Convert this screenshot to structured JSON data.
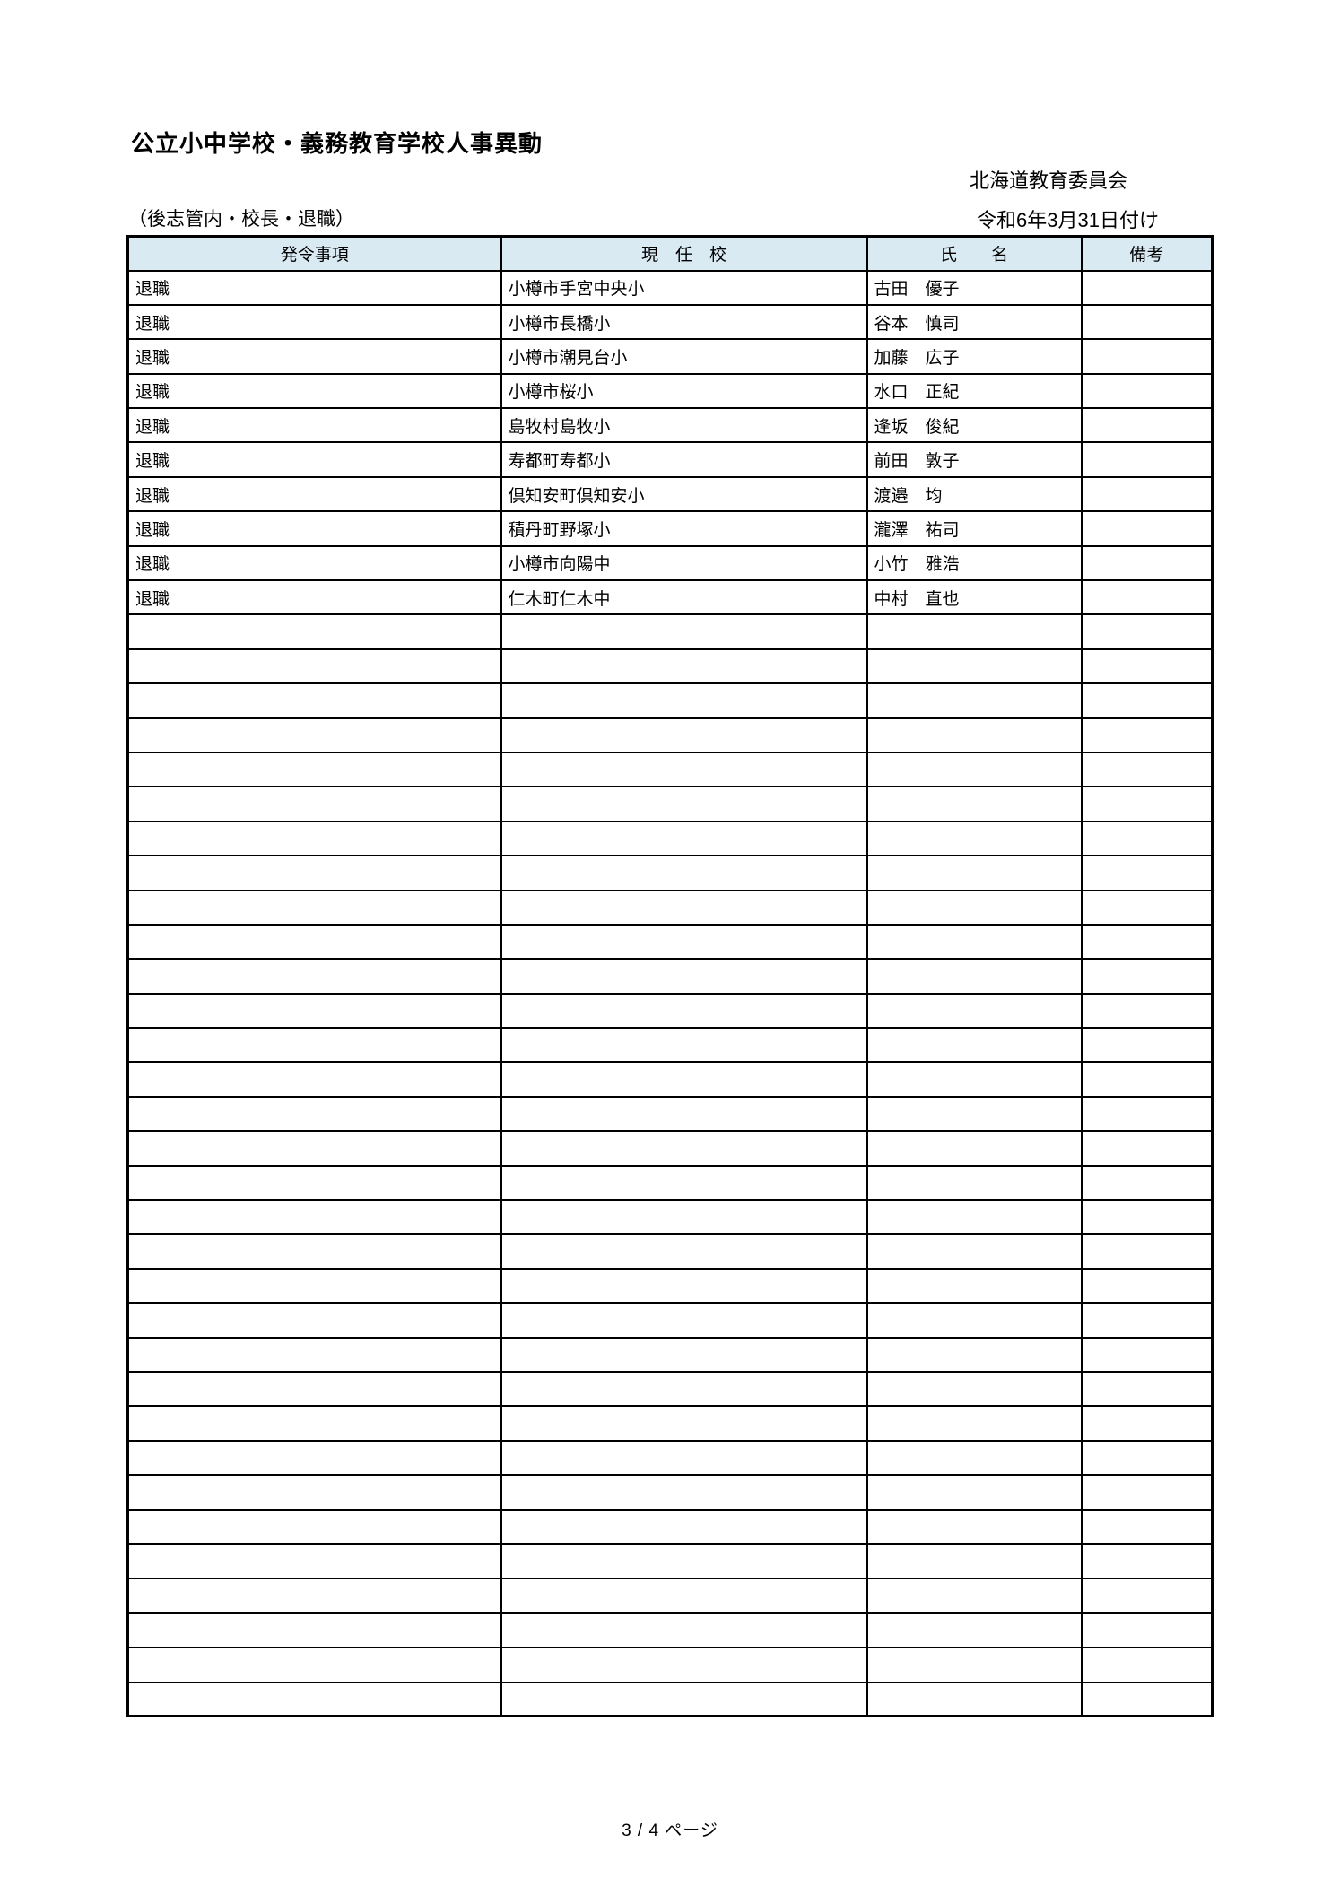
{
  "page": {
    "title": "公立小中学校・義務教育学校人事異動",
    "organization": "北海道教育委員会",
    "scope_label": "（後志管内・校長・退職）",
    "date_label": "令和6年3月31日付け",
    "footer": "3 / 4 ページ"
  },
  "table": {
    "headers": [
      "発令事項",
      "現　任　校",
      "氏　　名",
      "備考"
    ],
    "rows": [
      [
        "退職",
        "小樽市手宮中央小",
        "古田　優子",
        ""
      ],
      [
        "退職",
        "小樽市長橋小",
        "谷本　慎司",
        ""
      ],
      [
        "退職",
        "小樽市潮見台小",
        "加藤　広子",
        ""
      ],
      [
        "退職",
        "小樽市桜小",
        "水口　正紀",
        ""
      ],
      [
        "退職",
        "島牧村島牧小",
        "逢坂　俊紀",
        ""
      ],
      [
        "退職",
        "寿都町寿都小",
        "前田　敦子",
        ""
      ],
      [
        "退職",
        "倶知安町倶知安小",
        "渡邉　均",
        ""
      ],
      [
        "退職",
        "積丹町野塚小",
        "瀧澤　祐司",
        ""
      ],
      [
        "退職",
        "小樽市向陽中",
        "小竹　雅浩",
        ""
      ],
      [
        "退職",
        "仁木町仁木中",
        "中村　直也",
        ""
      ]
    ],
    "empty_row_count": 32,
    "header_bg": "#d9eaf2",
    "border_color": "#000000"
  }
}
